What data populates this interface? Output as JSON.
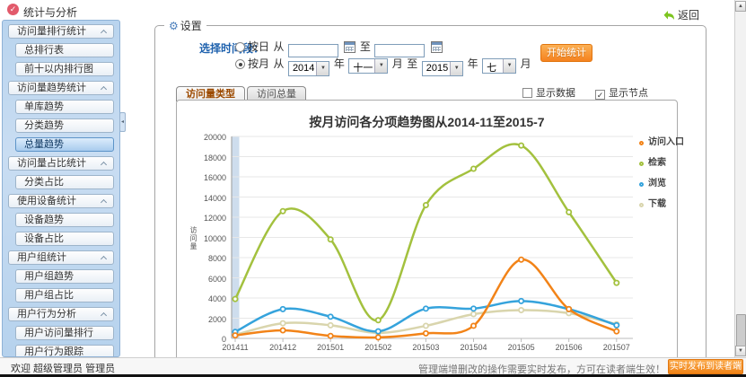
{
  "sidebar": {
    "title": "统计与分析",
    "sections": [
      {
        "label": "访问量排行统计",
        "children": [
          {
            "label": "总排行表"
          },
          {
            "label": "前十以内排行图"
          }
        ]
      },
      {
        "label": "访问量趋势统计",
        "children": [
          {
            "label": "单库趋势"
          },
          {
            "label": "分类趋势"
          },
          {
            "label": "总量趋势",
            "selected": true
          }
        ]
      },
      {
        "label": "访问量占比统计",
        "children": [
          {
            "label": "分类占比"
          }
        ]
      },
      {
        "label": "使用设备统计",
        "children": [
          {
            "label": "设备趋势"
          },
          {
            "label": "设备占比"
          }
        ]
      },
      {
        "label": "用户组统计",
        "children": [
          {
            "label": "用户组趋势"
          },
          {
            "label": "用户组占比"
          }
        ]
      },
      {
        "label": "用户行为分析",
        "children": [
          {
            "label": "用户访问量排行"
          },
          {
            "label": "用户行为跟踪"
          }
        ]
      }
    ]
  },
  "topbar": {
    "back_label": "返回"
  },
  "settings": {
    "legend": "设置",
    "gear_icon": "⚙",
    "time_label": "选择时间段：",
    "day_radio": "按日",
    "month_radio": "按月",
    "from": "从",
    "to": "至",
    "year": "年",
    "month": "月",
    "day_from_value": "",
    "day_to_value": "",
    "from_year": "2014",
    "from_month": "十一",
    "to_year": "2015",
    "to_month": "七",
    "start_button": "开始统计",
    "show_data_label": "显示数据",
    "show_data_checked": false,
    "show_node_label": "显示节点",
    "show_node_checked": true
  },
  "tabs": [
    {
      "label": "访问量类型",
      "active": true
    },
    {
      "label": "访问总量",
      "active": false
    }
  ],
  "chart_data": {
    "type": "line",
    "title": "按月访问各分项趋势图从2014-11至2015-7",
    "xlabel": "",
    "ylabel": "访问量",
    "categories": [
      "201411",
      "201412",
      "201501",
      "201502",
      "201503",
      "201504",
      "201505",
      "201506",
      "201507"
    ],
    "series": [
      {
        "name": "访问入口",
        "color": "#f28318",
        "values": [
          300,
          800,
          250,
          100,
          500,
          1250,
          7800,
          2900,
          700
        ]
      },
      {
        "name": "检索",
        "color": "#a3c13e",
        "values": [
          3900,
          12600,
          9800,
          1800,
          13200,
          16800,
          19100,
          12500,
          5500
        ]
      },
      {
        "name": "浏览",
        "color": "#35a3dc",
        "values": [
          650,
          2900,
          2150,
          700,
          2950,
          2950,
          3700,
          2900,
          1300
        ]
      },
      {
        "name": "下载",
        "color": "#d9d5ad",
        "values": [
          350,
          1500,
          1300,
          550,
          1250,
          2400,
          2800,
          2500,
          1400
        ]
      }
    ],
    "ylim": [
      0,
      20000
    ],
    "ytick_step": 2000,
    "grid": "horizontal",
    "legend_position": "right",
    "first_column_band_color": "#b9cfe6"
  },
  "statusbar": {
    "welcome": "欢迎 超级管理员 管理员",
    "notice": "管理端增删改的操作需要实时发布，方可在读者端生效！",
    "publish_button": "实时发布到读者端"
  }
}
